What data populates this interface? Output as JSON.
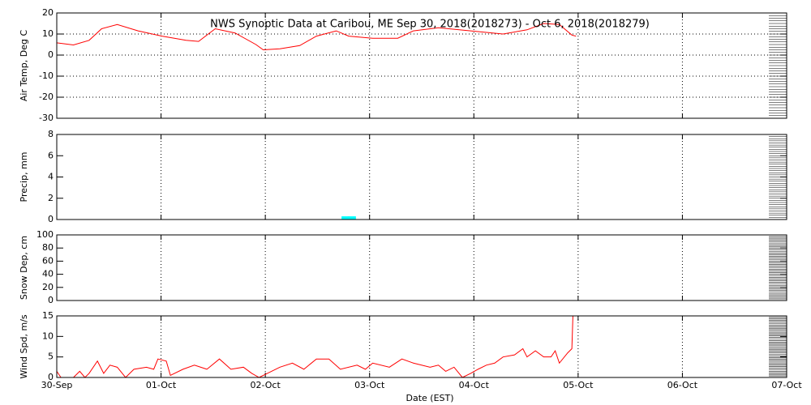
{
  "x_axis": {
    "label": "Date (EST)",
    "xlim": [
      0,
      7
    ],
    "xticks": [
      {
        "value": 0,
        "label": "30-Sep"
      },
      {
        "value": 1,
        "label": "01-Oct"
      },
      {
        "value": 2,
        "label": "02-Oct"
      },
      {
        "value": 3,
        "label": "03-Oct"
      },
      {
        "value": 4,
        "label": "04-Oct"
      },
      {
        "value": 5,
        "label": "05-Oct"
      },
      {
        "value": 6,
        "label": "06-Oct"
      },
      {
        "value": 7,
        "label": "07-Oct"
      }
    ]
  },
  "chart_data": [
    {
      "type": "line",
      "title": "NWS Synoptic Data at Caribou, ME   Sep 30, 2018(2018273) - Oct  6, 2018(2018279)",
      "ylabel": "Air Temp, Deg C",
      "ylim": [
        -30,
        20
      ],
      "yticks": [
        -30,
        -20,
        -10,
        0,
        10,
        20
      ],
      "grid": "xy",
      "series": [
        {
          "color": "#ff0000",
          "x": [
            0,
            0.16,
            0.31,
            0.43,
            0.58,
            0.78,
            1.01,
            1.24,
            1.36,
            1.52,
            1.71,
            1.91,
            1.98,
            2.14,
            2.33,
            2.49,
            2.68,
            2.8,
            3.03,
            3.27,
            3.42,
            3.66,
            3.97,
            4.28,
            4.51,
            4.67,
            4.82,
            4.94,
            4.98
          ],
          "values": [
            5.8,
            4.8,
            7,
            12.5,
            14.5,
            11.5,
            9,
            7,
            6.5,
            12.5,
            10.5,
            5,
            2.5,
            3,
            4.5,
            9,
            11.5,
            9,
            8,
            8,
            11.5,
            13,
            11.5,
            10,
            12,
            15,
            14.5,
            9.5,
            9
          ]
        }
      ]
    },
    {
      "type": "bar",
      "ylabel": "Precip, mm",
      "ylim": [
        0,
        8
      ],
      "yticks": [
        0,
        2,
        4,
        6,
        8
      ],
      "grid": "x",
      "series": [
        {
          "color": "#00ffff",
          "x": [
            2.77,
            2.83
          ],
          "values": [
            0.3,
            0.3
          ]
        }
      ]
    },
    {
      "type": "line",
      "ylabel": "Snow Dep, cm",
      "ylim": [
        0,
        100
      ],
      "yticks": [
        0,
        20,
        40,
        60,
        80,
        100
      ],
      "grid": "x",
      "series": []
    },
    {
      "type": "line",
      "ylabel": "Wind Spd, m/s",
      "ylim": [
        0,
        15
      ],
      "yticks": [
        0,
        5,
        10,
        15
      ],
      "grid": "x",
      "series": [
        {
          "color": "#ff0000",
          "x": [
            0,
            0.04,
            0.16,
            0.22,
            0.27,
            0.31,
            0.39,
            0.45,
            0.51,
            0.58,
            0.66,
            0.74,
            0.86,
            0.93,
            0.97,
            1.05,
            1.09,
            1.21,
            1.32,
            1.44,
            1.56,
            1.67,
            1.79,
            1.87,
            1.94,
            2.02,
            2.14,
            2.26,
            2.37,
            2.49,
            2.61,
            2.72,
            2.88,
            2.96,
            3.03,
            3.19,
            3.31,
            3.42,
            3.58,
            3.66,
            3.73,
            3.81,
            3.89,
            3.97,
            4.04,
            4.12,
            4.2,
            4.28,
            4.39,
            4.47,
            4.51,
            4.59,
            4.67,
            4.74,
            4.78,
            4.82,
            4.9,
            4.94,
            4.95
          ],
          "values": [
            1.5,
            0,
            0,
            1.5,
            0,
            1,
            4,
            1,
            3,
            2.5,
            0,
            2,
            2.5,
            2,
            4.5,
            4,
            0.5,
            2,
            3,
            2,
            4.5,
            2,
            2.5,
            1,
            0,
            1,
            2.5,
            3.5,
            2,
            4.5,
            4.5,
            2,
            3,
            2,
            3.5,
            2.5,
            4.5,
            3.5,
            2.5,
            3,
            1.5,
            2.5,
            0,
            1,
            2,
            3,
            3.5,
            5,
            5.5,
            7,
            5,
            6.5,
            5,
            5,
            6.5,
            3.5,
            6,
            7,
            15
          ]
        }
      ]
    }
  ]
}
